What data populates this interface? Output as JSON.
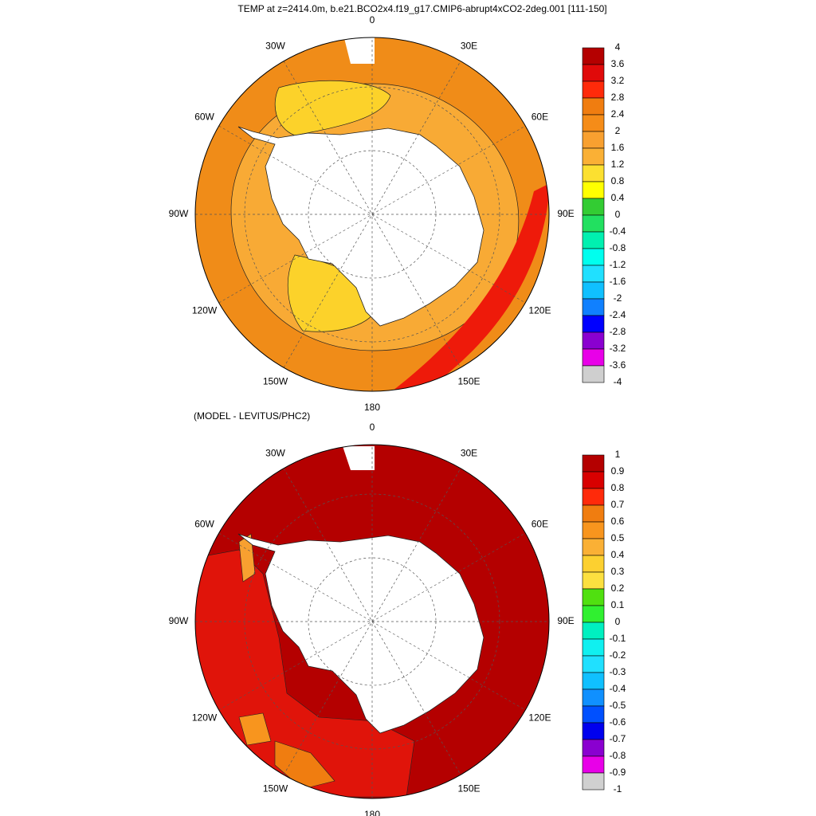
{
  "title": "TEMP at z=2414.0m, b.e21.BCO2x4.f19_g17.CMIP6-abrupt4xCO2-2deg.001 [111-150]",
  "panels": [
    {
      "lon_labels": [
        "0",
        "30E",
        "60E",
        "90E",
        "120E",
        "150E",
        "180",
        "150W",
        "120W",
        "90W",
        "60W",
        "30W"
      ],
      "colorbar": {
        "labels": [
          "4",
          "3.6",
          "3.2",
          "2.8",
          "2.4",
          "2",
          "1.6",
          "1.2",
          "0.8",
          "0.4",
          "0",
          "-0.4",
          "-0.8",
          "-1.2",
          "-1.6",
          "-2",
          "-2.4",
          "-2.8",
          "-3.2",
          "-3.6",
          "-4"
        ],
        "colors": [
          "#b40000",
          "#e00a0a",
          "#ff2a0a",
          "#f07d10",
          "#f58c18",
          "#f8a030",
          "#fab035",
          "#fce030",
          "#ffff00",
          "#33cc33",
          "#22e060",
          "#00f0b0",
          "#00ffee",
          "#20e0ff",
          "#10c0ff",
          "#1080ff",
          "#0000ff",
          "#8a00d0",
          "#e800e8",
          "#cfcfcf",
          "#707070"
        ]
      }
    },
    {
      "subtitle": "(MODEL - LEVITUS/PHC2)",
      "lon_labels": [
        "0",
        "30E",
        "60E",
        "90E",
        "120E",
        "150E",
        "180",
        "150W",
        "120W",
        "90W",
        "60W",
        "30W"
      ],
      "colorbar": {
        "labels": [
          "1",
          "0.9",
          "0.8",
          "0.7",
          "0.6",
          "0.5",
          "0.4",
          "0.3",
          "0.2",
          "0.1",
          "0",
          "-0.1",
          "-0.2",
          "-0.3",
          "-0.4",
          "-0.5",
          "-0.6",
          "-0.7",
          "-0.8",
          "-0.9",
          "-1"
        ],
        "colors": [
          "#b40000",
          "#d80000",
          "#ff2a0a",
          "#f07d10",
          "#f8951e",
          "#fab035",
          "#fcd030",
          "#fce040",
          "#50e010",
          "#30f030",
          "#00f0c0",
          "#10f0f0",
          "#20e0ff",
          "#10c0ff",
          "#1090ff",
          "#0050ff",
          "#0000ee",
          "#8a00d0",
          "#e800e8",
          "#d0d0d0",
          "#707070"
        ]
      }
    }
  ]
}
